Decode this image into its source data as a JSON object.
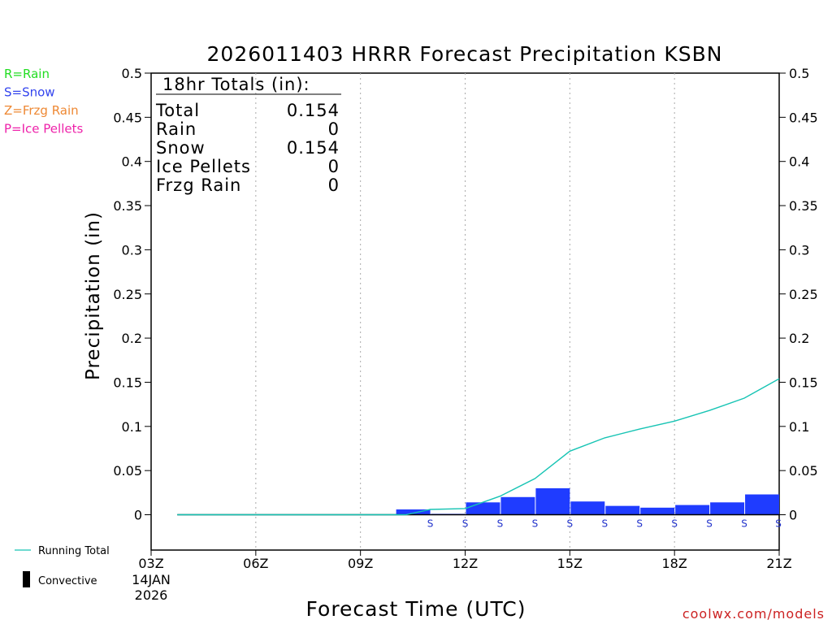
{
  "chart_data": {
    "type": "bar",
    "title": "2026011403 HRRR Forecast Precipitation KSBN",
    "xlabel": "Forecast Time (UTC)",
    "ylabel": "Precipitation (in)",
    "ylim": [
      -0.04,
      0.5
    ],
    "xlim": [
      3,
      21
    ],
    "y_ticks": [
      0,
      0.05,
      0.1,
      0.15,
      0.2,
      0.25,
      0.3,
      0.35,
      0.4,
      0.45,
      0.5
    ],
    "x_ticks": [
      {
        "x": 3,
        "label": "03Z"
      },
      {
        "x": 6,
        "label": "06Z"
      },
      {
        "x": 9,
        "label": "09Z"
      },
      {
        "x": 12,
        "label": "12Z"
      },
      {
        "x": 15,
        "label": "15Z"
      },
      {
        "x": 18,
        "label": "18Z"
      },
      {
        "x": 21,
        "label": "21Z"
      }
    ],
    "start_date_label": [
      "14JAN",
      "2026"
    ],
    "grid_x": [
      6,
      9,
      12,
      15,
      18
    ],
    "bars": {
      "name": "Hourly Precipitation",
      "color": "#1f3cff",
      "hours": [
        11,
        12,
        13,
        14,
        15,
        16,
        17,
        18,
        19,
        20,
        21
      ],
      "values": [
        0.006,
        0.001,
        0.014,
        0.02,
        0.03,
        0.015,
        0.01,
        0.008,
        0.011,
        0.014,
        0.023
      ]
    },
    "running_total": {
      "name": "Running Total",
      "color": "#17c4b4",
      "x": [
        3.75,
        10.3,
        11,
        12,
        13,
        14,
        15,
        16,
        17,
        18,
        19,
        20,
        21
      ],
      "y": [
        0,
        0,
        0.006,
        0.007,
        0.021,
        0.041,
        0.072,
        0.087,
        0.097,
        0.106,
        0.118,
        0.132,
        0.154
      ]
    },
    "baseline_segment": {
      "from": 3.75,
      "to": 21
    },
    "precip_type_markers": {
      "hours": [
        11,
        12,
        13,
        14,
        15,
        16,
        17,
        18,
        19,
        20,
        21
      ],
      "labels": [
        "S",
        "S",
        "S",
        "S",
        "S",
        "S",
        "S",
        "S",
        "S",
        "S",
        "S"
      ]
    }
  },
  "type_legend": [
    {
      "label": "R=Rain",
      "color": "#22dd22"
    },
    {
      "label": "S=Snow",
      "color": "#3344ee"
    },
    {
      "label": "Z=Frzg Rain",
      "color": "#ee8833"
    },
    {
      "label": "P=Ice Pellets",
      "color": "#ee22aa"
    }
  ],
  "totals_box": {
    "heading": "18hr Totals (in):",
    "rows": [
      {
        "label": "Total",
        "value": "0.154"
      },
      {
        "label": "Rain",
        "value": "0"
      },
      {
        "label": "Snow",
        "value": "0.154"
      },
      {
        "label": "Ice Pellets",
        "value": "0"
      },
      {
        "label": "Frzg Rain",
        "value": "0"
      }
    ]
  },
  "bottom_legend": {
    "running_total_label": "Running Total",
    "running_total_color": "#17c4b4",
    "convective_label": "Convective",
    "convective_color": "#000000"
  },
  "credit": "coolwx.com/models"
}
